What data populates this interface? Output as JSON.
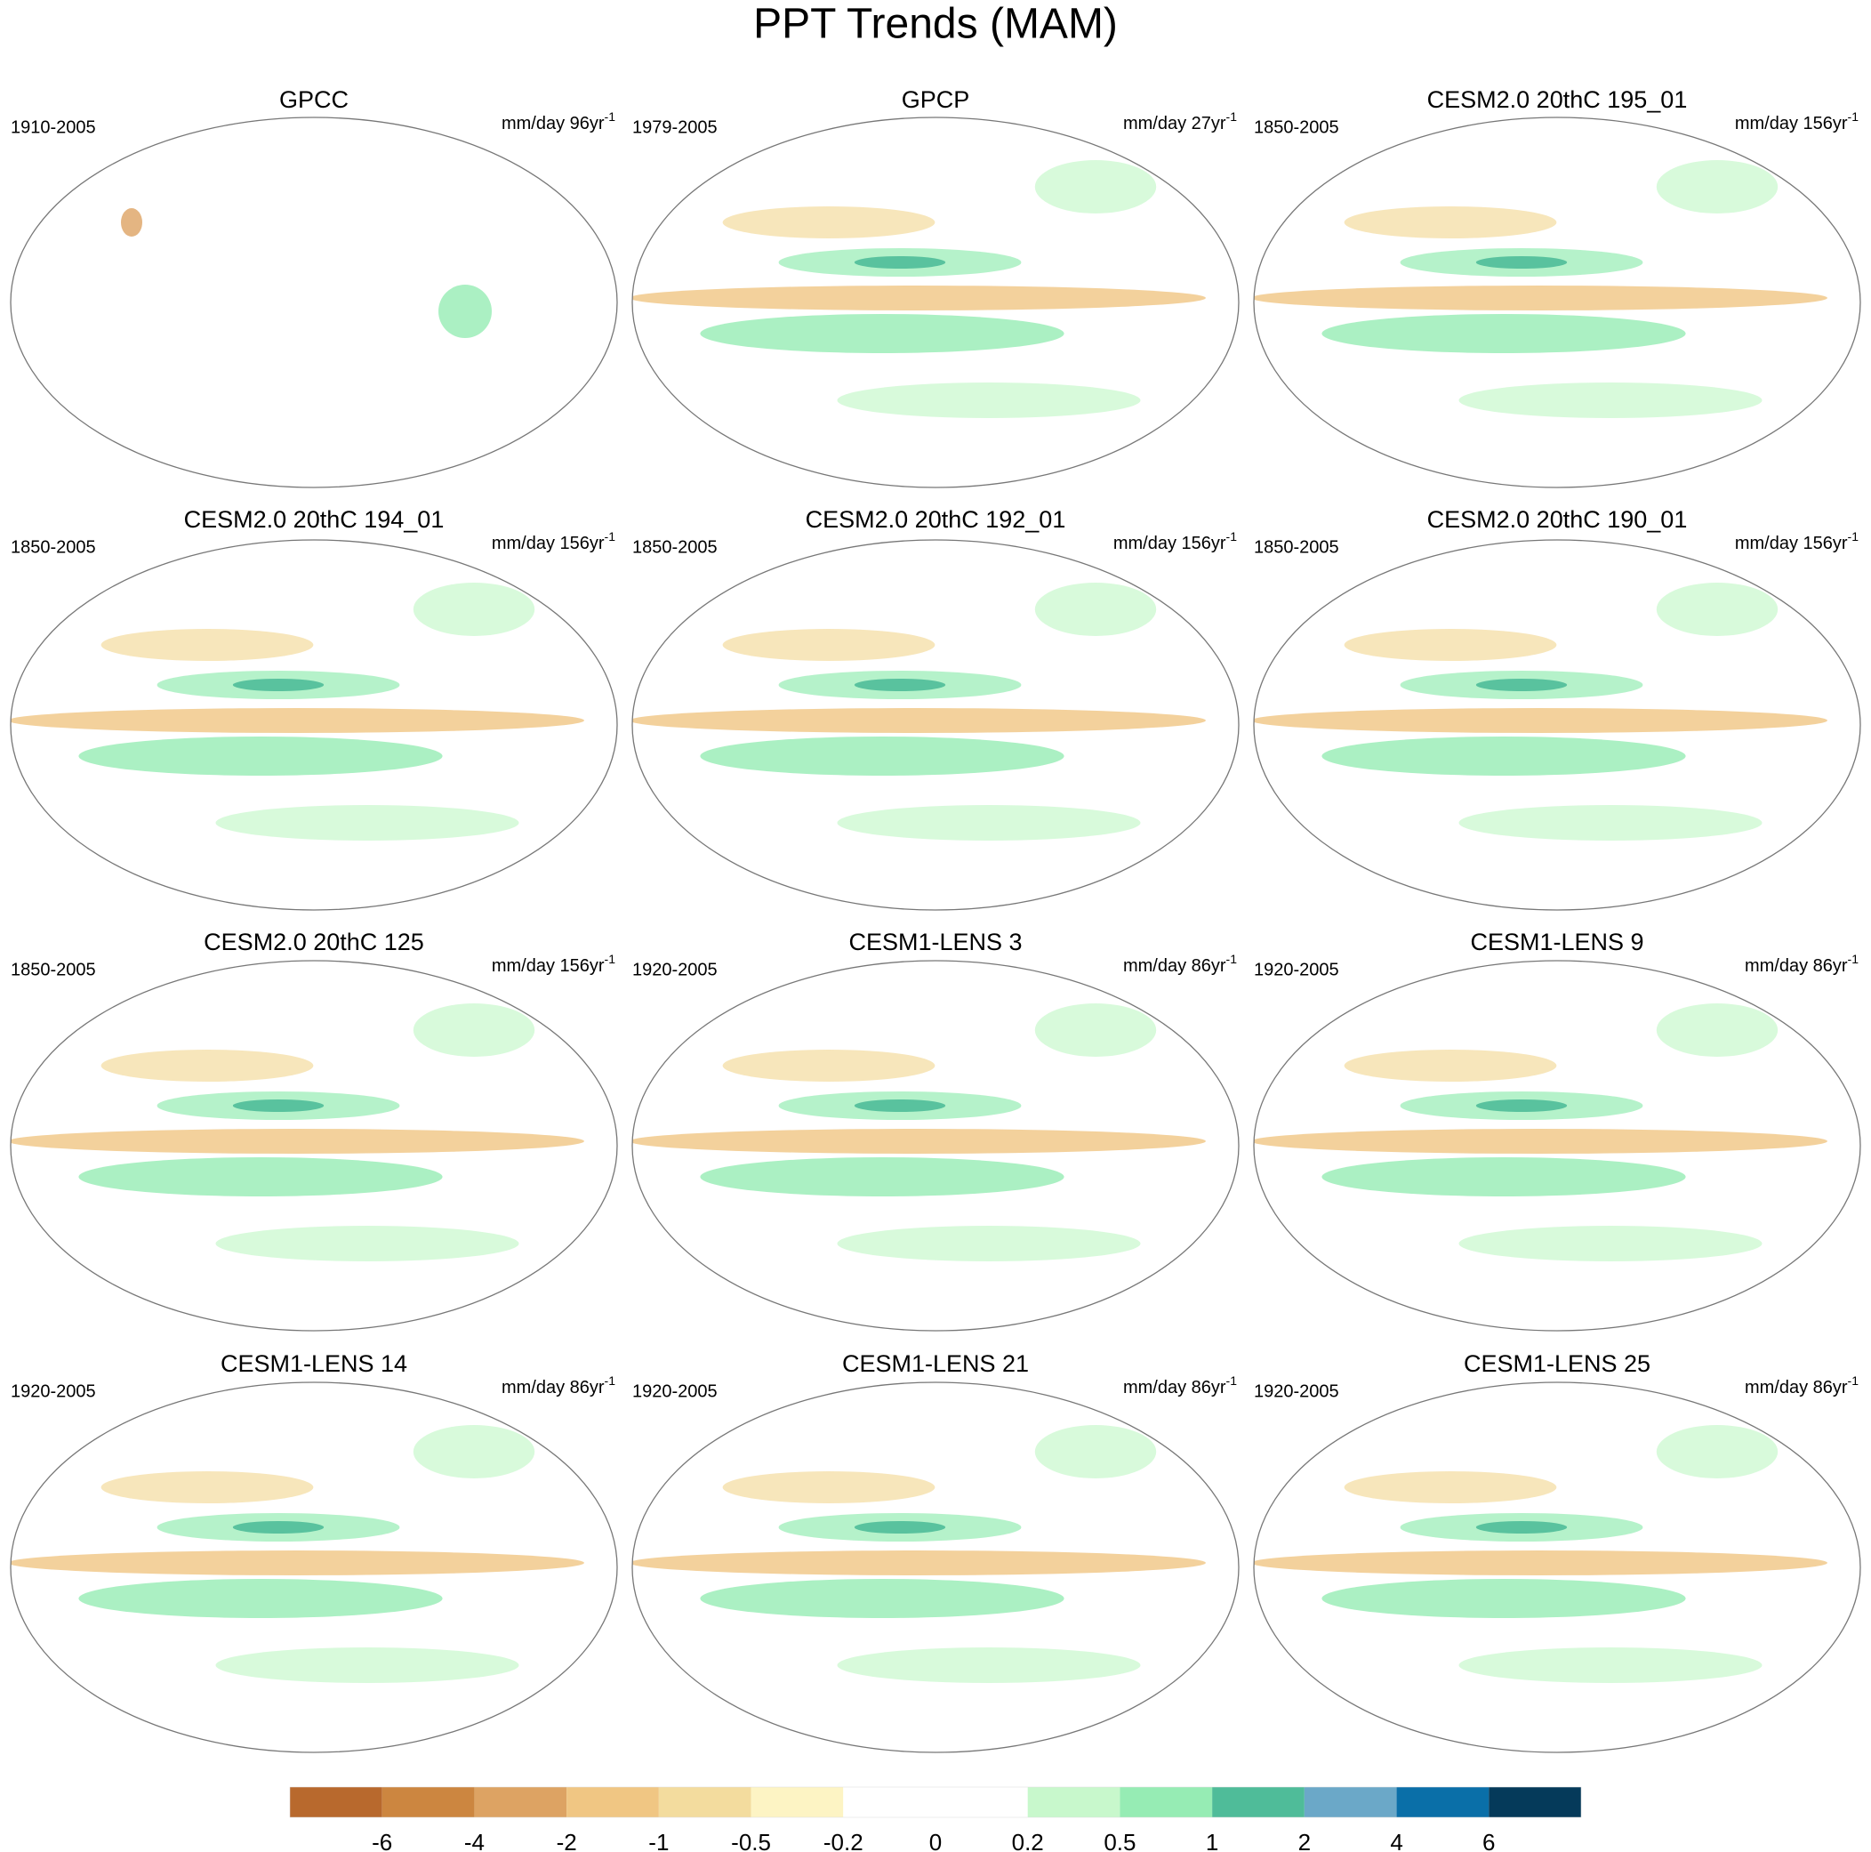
{
  "title": "PPT Trends (MAM)",
  "panels": [
    {
      "title": "GPCC",
      "period": "1910-2005",
      "units": "mm/day 96yr",
      "units_exponent": "-1"
    },
    {
      "title": "GPCP",
      "period": "1979-2005",
      "units": "mm/day 27yr",
      "units_exponent": "-1"
    },
    {
      "title": "CESM2.0 20thC 195_01",
      "period": "1850-2005",
      "units": "mm/day 156yr",
      "units_exponent": "-1"
    },
    {
      "title": "CESM2.0 20thC 194_01",
      "period": "1850-2005",
      "units": "mm/day 156yr",
      "units_exponent": "-1"
    },
    {
      "title": "CESM2.0 20thC 192_01",
      "period": "1850-2005",
      "units": "mm/day 156yr",
      "units_exponent": "-1"
    },
    {
      "title": "CESM2.0 20thC 190_01",
      "period": "1850-2005",
      "units": "mm/day 156yr",
      "units_exponent": "-1"
    },
    {
      "title": "CESM2.0 20thC 125",
      "period": "1850-2005",
      "units": "mm/day 156yr",
      "units_exponent": "-1"
    },
    {
      "title": "CESM1-LENS 3",
      "period": "1920-2005",
      "units": "mm/day 86yr",
      "units_exponent": "-1"
    },
    {
      "title": "CESM1-LENS 9",
      "period": "1920-2005",
      "units": "mm/day 86yr",
      "units_exponent": "-1"
    },
    {
      "title": "CESM1-LENS 14",
      "period": "1920-2005",
      "units": "mm/day 86yr",
      "units_exponent": "-1"
    },
    {
      "title": "CESM1-LENS 21",
      "period": "1920-2005",
      "units": "mm/day 86yr",
      "units_exponent": "-1"
    },
    {
      "title": "CESM1-LENS 25",
      "period": "1920-2005",
      "units": "mm/day 86yr",
      "units_exponent": "-1"
    }
  ],
  "colorbar": {
    "colors": [
      "#b8692d",
      "#cc8640",
      "#dda363",
      "#f0c683",
      "#f3dc9e",
      "#fdf4c4",
      "#ffffff",
      "#ffffff",
      "#c8f8cc",
      "#96ecb4",
      "#4fbc99",
      "#6ba8c8",
      "#0a6fa8",
      "#053a5a"
    ],
    "levels": [
      -6,
      -4,
      -2,
      -1,
      -0.5,
      -0.2,
      0,
      0.2,
      0.5,
      1,
      2,
      4,
      6
    ]
  }
}
